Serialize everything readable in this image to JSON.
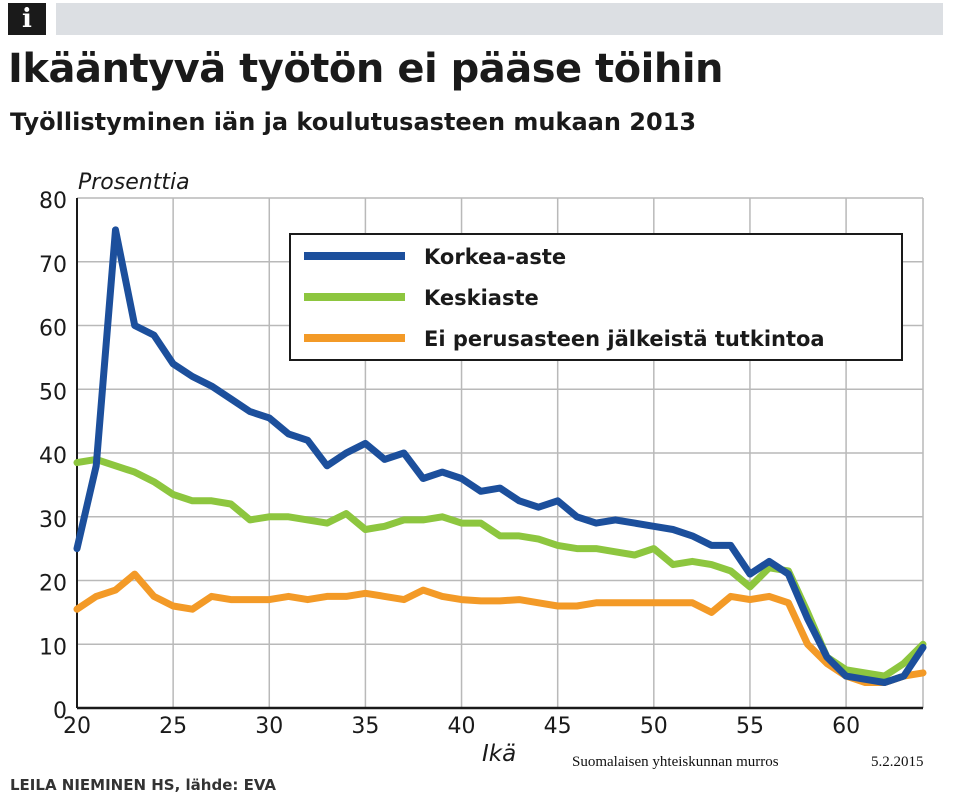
{
  "header": {
    "info_glyph": "i"
  },
  "title": "Ikääntyvä työtön ei pääse töihin",
  "subtitle": "Työllistyminen iän ja koulutusasteen mukaan 2013",
  "credit": "LEILA NIEMINEN HS, lähde: EVA",
  "footer": {
    "left": "Suomalaisen yhteiskunnan murros",
    "right": "5.2.2015"
  },
  "chart_data": {
    "type": "line",
    "title": "Ikääntyvä työtön ei pääse töihin",
    "subtitle": "Työllistyminen iän ja koulutusasteen mukaan 2013",
    "xlabel": "Ikä",
    "ylabel": "Prosenttia",
    "xlim": [
      20,
      64
    ],
    "ylim": [
      0,
      80
    ],
    "xticks": [
      20,
      25,
      30,
      35,
      40,
      45,
      50,
      55,
      60
    ],
    "yticks": [
      0,
      10,
      20,
      30,
      40,
      50,
      60,
      70,
      80
    ],
    "grid": true,
    "legend_position": "top-right",
    "x": [
      20,
      21,
      22,
      23,
      24,
      25,
      26,
      27,
      28,
      29,
      30,
      31,
      32,
      33,
      34,
      35,
      36,
      37,
      38,
      39,
      40,
      41,
      42,
      43,
      44,
      45,
      46,
      47,
      48,
      49,
      50,
      51,
      52,
      53,
      54,
      55,
      56,
      57,
      58,
      59,
      60,
      61,
      62,
      63,
      64
    ],
    "series": [
      {
        "name": "Korkea-aste",
        "color": "#1c4f9c",
        "values": [
          25,
          38,
          75,
          60,
          58.5,
          54,
          52,
          50.5,
          48.5,
          46.5,
          45.5,
          43,
          42,
          38,
          40,
          41.5,
          39,
          40,
          36,
          37,
          36,
          34,
          34.5,
          32.5,
          31.5,
          32.5,
          30,
          29,
          29.5,
          29,
          28.5,
          28,
          27,
          25.5,
          25.5,
          21,
          23,
          21,
          14,
          8,
          5,
          4.5,
          4,
          5,
          9.5
        ]
      },
      {
        "name": "Keskiaste",
        "color": "#8dc63f",
        "values": [
          38.5,
          39,
          38,
          37,
          35.5,
          33.5,
          32.5,
          32.5,
          32,
          29.5,
          30,
          30,
          29.5,
          29,
          30.5,
          28,
          28.5,
          29.5,
          29.5,
          30,
          29,
          29,
          27,
          27,
          26.5,
          25.5,
          25,
          25,
          24.5,
          24,
          25,
          22.5,
          23,
          22.5,
          21.5,
          19,
          22,
          21.5,
          15,
          8,
          6,
          5.5,
          5,
          7,
          10
        ]
      },
      {
        "name": "Ei perusasteen jälkeistä tutkintoa",
        "color": "#f39a27",
        "values": [
          15.5,
          17.5,
          18.5,
          21,
          17.5,
          16,
          15.5,
          17.5,
          17,
          17,
          17,
          17.5,
          17,
          17.5,
          17.5,
          18,
          17.5,
          17,
          18.5,
          17.5,
          17,
          16.8,
          16.8,
          17,
          16.5,
          16,
          16,
          16.5,
          16.5,
          16.5,
          16.5,
          16.5,
          16.5,
          15,
          17.5,
          17,
          17.5,
          16.5,
          10,
          7,
          5,
          4,
          4,
          5,
          5.5
        ]
      }
    ]
  }
}
